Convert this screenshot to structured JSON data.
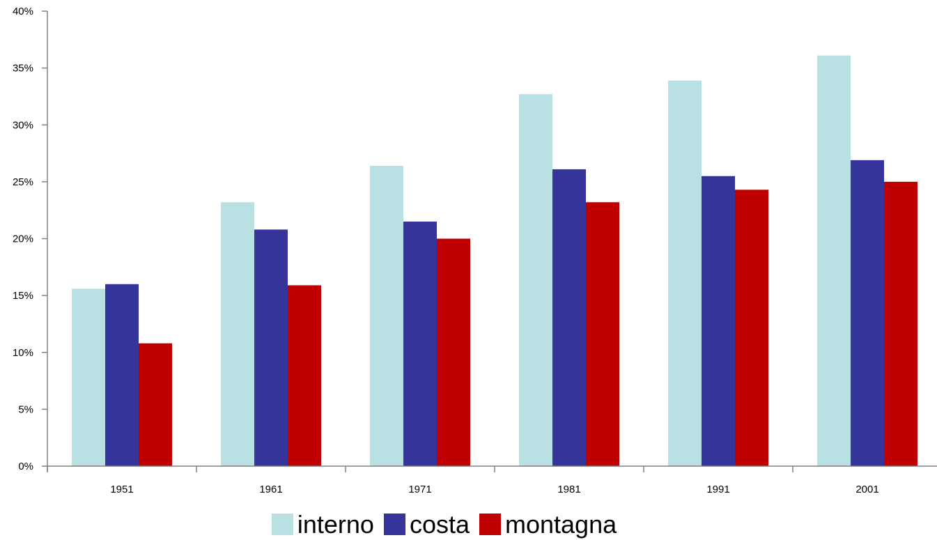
{
  "chart_data": {
    "type": "bar",
    "categories": [
      "1951",
      "1961",
      "1971",
      "1981",
      "1991",
      "2001"
    ],
    "series": [
      {
        "name": "interno",
        "color": "#b9e0e3",
        "values": [
          15.6,
          23.2,
          26.4,
          32.7,
          33.9,
          36.1
        ]
      },
      {
        "name": "costa",
        "color": "#34349a",
        "values": [
          16.0,
          20.8,
          21.5,
          26.1,
          25.5,
          26.9
        ]
      },
      {
        "name": "montagna",
        "color": "#c00000",
        "values": [
          10.8,
          15.9,
          20.0,
          23.2,
          24.3,
          25.0
        ]
      }
    ],
    "y_ticks": [
      "0%",
      "5%",
      "10%",
      "15%",
      "20%",
      "25%",
      "30%",
      "35%",
      "40%"
    ],
    "ylim": [
      0,
      40
    ],
    "grid": false,
    "legend_position": "bottom"
  }
}
